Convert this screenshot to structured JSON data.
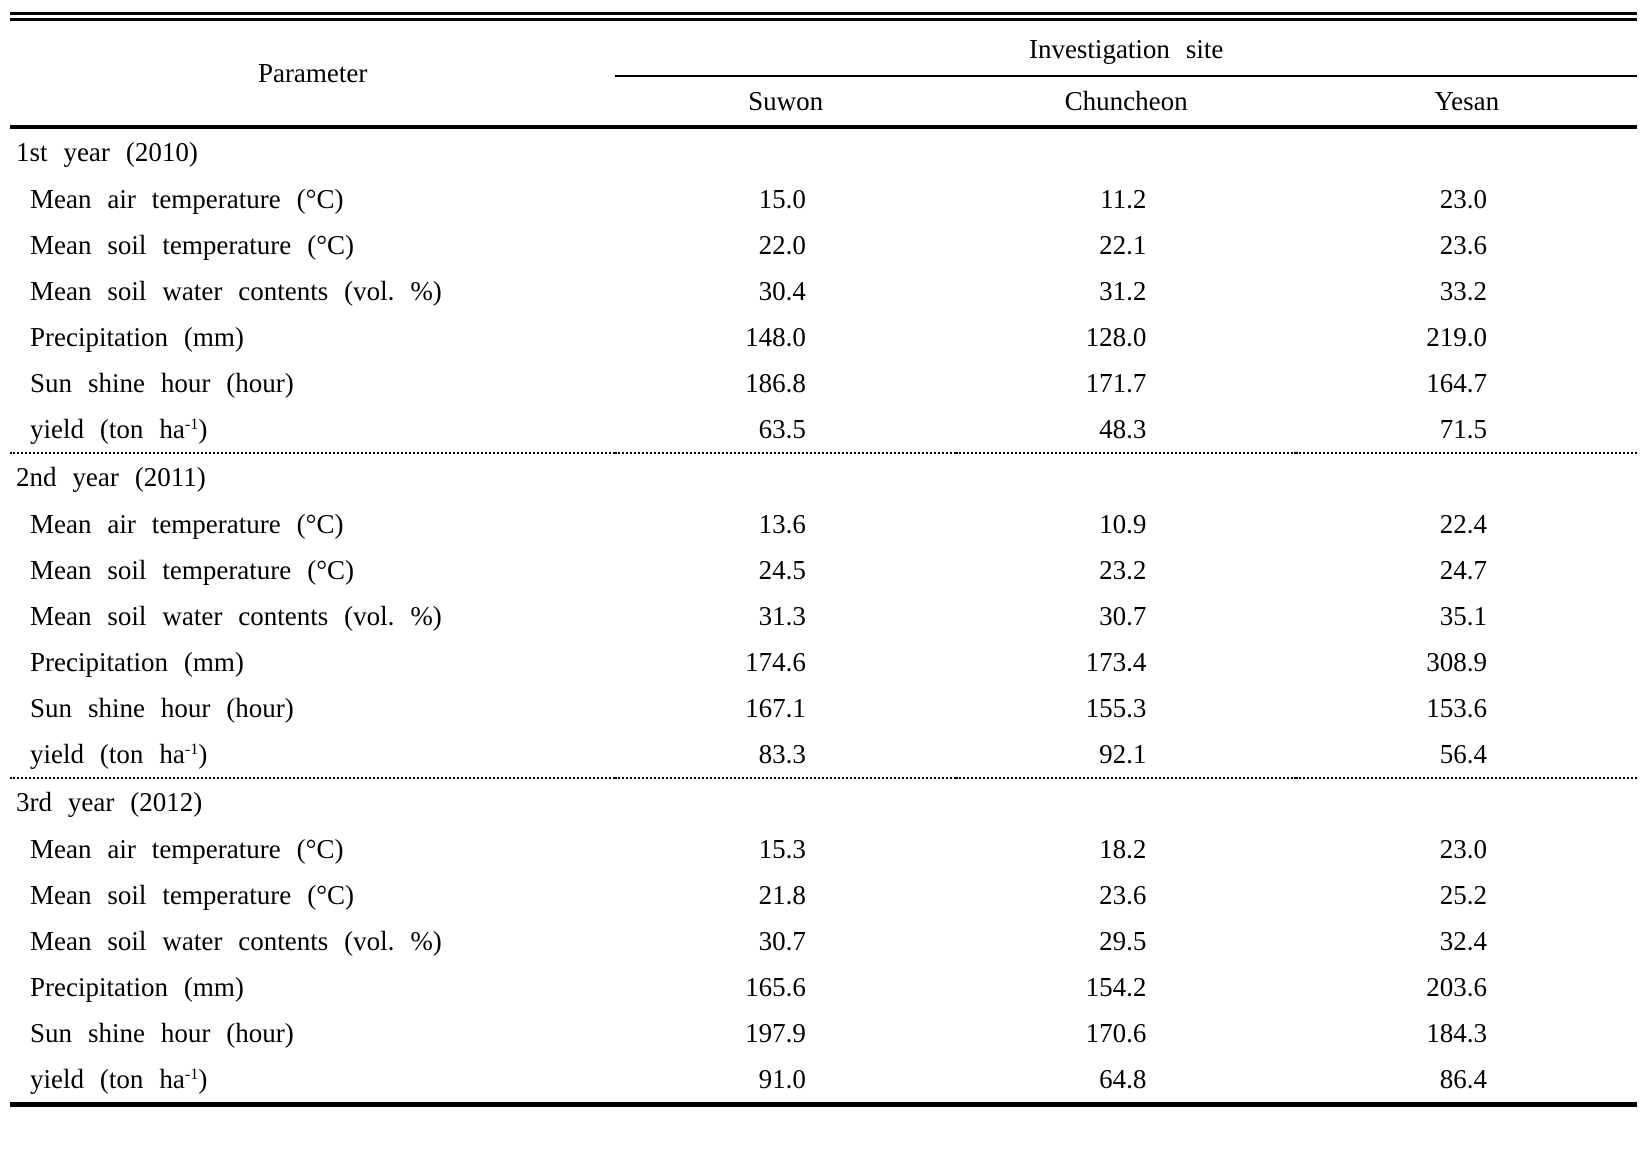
{
  "table": {
    "header": {
      "parameter_label": "Parameter",
      "group_label": "Investigation site",
      "sites": [
        "Suwon",
        "Chuncheon",
        "Yesan"
      ]
    },
    "sections": [
      {
        "year_label": "1st year (2010)",
        "rows": [
          {
            "label": "Mean air temperature (°C)",
            "values": [
              "15.0",
              "11.2",
              "23.0"
            ]
          },
          {
            "label": "Mean soil temperature (°C)",
            "values": [
              "22.0",
              "22.1",
              "23.6"
            ]
          },
          {
            "label": "Mean soil water contents (vol. %)",
            "values": [
              "30.4",
              "31.2",
              "33.2"
            ]
          },
          {
            "label": "Precipitation (mm)",
            "values": [
              "148.0",
              "128.0",
              "219.0"
            ]
          },
          {
            "label": "Sun shine hour (hour)",
            "values": [
              "186.8",
              "171.7",
              "164.7"
            ]
          },
          {
            "label_parts": {
              "pre": "yield (ton ha",
              "sup": "-1",
              "post": ")"
            },
            "values": [
              "63.5",
              "48.3",
              "71.5"
            ]
          }
        ]
      },
      {
        "year_label": "2nd year (2011)",
        "rows": [
          {
            "label": "Mean air temperature (°C)",
            "values": [
              "13.6",
              "10.9",
              "22.4"
            ]
          },
          {
            "label": "Mean soil temperature (°C)",
            "values": [
              "24.5",
              "23.2",
              "24.7"
            ]
          },
          {
            "label": "Mean soil water contents (vol. %)",
            "values": [
              "31.3",
              "30.7",
              "35.1"
            ]
          },
          {
            "label": "Precipitation (mm)",
            "values": [
              "174.6",
              "173.4",
              "308.9"
            ]
          },
          {
            "label": "Sun shine hour (hour)",
            "values": [
              "167.1",
              "155.3",
              "153.6"
            ]
          },
          {
            "label_parts": {
              "pre": "yield (ton ha",
              "sup": "-1",
              "post": ")"
            },
            "values": [
              "83.3",
              "92.1",
              "56.4"
            ]
          }
        ]
      },
      {
        "year_label": "3rd year (2012)",
        "rows": [
          {
            "label": "Mean air temperature (°C)",
            "values": [
              "15.3",
              "18.2",
              "23.0"
            ]
          },
          {
            "label": "Mean soil temperature (°C)",
            "values": [
              "21.8",
              "23.6",
              "25.2"
            ]
          },
          {
            "label": "Mean soil water contents (vol. %)",
            "values": [
              "30.7",
              "29.5",
              "32.4"
            ]
          },
          {
            "label": "Precipitation (mm)",
            "values": [
              "165.6",
              "154.2",
              "203.6"
            ]
          },
          {
            "label": "Sun shine hour (hour)",
            "values": [
              "197.9",
              "170.6",
              "184.3"
            ]
          },
          {
            "label_parts": {
              "pre": "yield (ton ha",
              "sup": "-1",
              "post": ")"
            },
            "values": [
              "91.0",
              "64.8",
              "86.4"
            ]
          }
        ]
      }
    ]
  }
}
